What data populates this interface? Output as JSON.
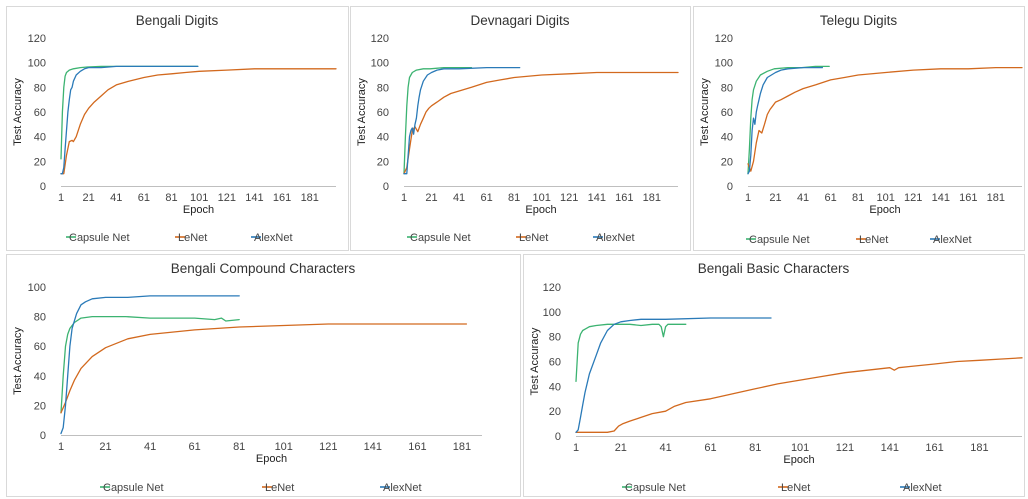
{
  "colors": {
    "Capsule Net": "#3cb371",
    "LeNet": "#d2691e",
    "AlexNet": "#2a7ab8"
  },
  "chart_data": [
    {
      "type": "line",
      "title": "Bengali Digits",
      "xlabel": "Epoch",
      "ylabel": "Test Accuracy",
      "xlim": [
        1,
        200
      ],
      "ylim": [
        0,
        120
      ],
      "yticks": [
        0,
        20,
        40,
        60,
        80,
        100,
        120
      ],
      "xticks": [
        1,
        21,
        41,
        61,
        81,
        101,
        121,
        141,
        161,
        181
      ],
      "legend": "bottom",
      "series": [
        {
          "name": "Capsule Net",
          "x": [
            1,
            2,
            3,
            4,
            5,
            7,
            10,
            15,
            20,
            30,
            40,
            50,
            60,
            70,
            80,
            90,
            100
          ],
          "y": [
            22,
            60,
            80,
            89,
            92,
            94,
            95,
            96,
            96.5,
            97,
            97,
            97,
            97,
            97,
            97,
            97,
            97
          ]
        },
        {
          "name": "LeNet",
          "x": [
            1,
            3,
            5,
            7,
            9,
            10,
            12,
            15,
            18,
            21,
            25,
            30,
            35,
            41,
            50,
            61,
            71,
            81,
            91,
            101,
            121,
            141,
            161,
            181,
            200
          ],
          "y": [
            10,
            10,
            25,
            36,
            37,
            36,
            40,
            50,
            58,
            63,
            68,
            73,
            78,
            82,
            85,
            88,
            90,
            91,
            92,
            93,
            94,
            95,
            95,
            95,
            95
          ]
        },
        {
          "name": "AlexNet",
          "x": [
            1,
            2,
            3,
            4,
            5,
            6,
            7,
            8,
            9,
            10,
            12,
            15,
            18,
            21,
            30,
            41,
            61,
            81,
            100
          ],
          "y": [
            10,
            10,
            15,
            30,
            45,
            60,
            70,
            78,
            80,
            85,
            90,
            93,
            95,
            96,
            96,
            97,
            97,
            97,
            97
          ]
        }
      ]
    },
    {
      "type": "line",
      "title": "Devnagari  Digits",
      "xlabel": "Epoch",
      "ylabel": "Test Accuracy",
      "xlim": [
        1,
        200
      ],
      "ylim": [
        0,
        120
      ],
      "yticks": [
        0,
        20,
        40,
        60,
        80,
        100,
        120
      ],
      "xticks": [
        1,
        21,
        41,
        61,
        81,
        101,
        121,
        141,
        161,
        181
      ],
      "legend": "bottom",
      "series": [
        {
          "name": "Capsule Net",
          "x": [
            1,
            2,
            3,
            4,
            5,
            7,
            10,
            15,
            20,
            30,
            40,
            50
          ],
          "y": [
            10,
            40,
            65,
            80,
            88,
            92,
            94,
            95,
            95,
            96,
            96,
            96
          ]
        },
        {
          "name": "LeNet",
          "x": [
            1,
            3,
            5,
            7,
            9,
            11,
            13,
            15,
            17,
            19,
            21,
            25,
            30,
            35,
            41,
            50,
            61,
            71,
            81,
            101,
            121,
            141,
            161,
            181,
            200
          ],
          "y": [
            10,
            15,
            30,
            45,
            48,
            44,
            50,
            55,
            60,
            63,
            65,
            68,
            72,
            75,
            77,
            80,
            84,
            86,
            88,
            90,
            91,
            92,
            92,
            92,
            92
          ]
        },
        {
          "name": "AlexNet",
          "x": [
            1,
            3,
            5,
            6,
            7,
            8,
            9,
            10,
            11,
            12,
            13,
            15,
            18,
            21,
            25,
            30,
            41,
            61,
            85
          ],
          "y": [
            10,
            10,
            40,
            45,
            47,
            42,
            50,
            55,
            65,
            72,
            78,
            85,
            90,
            92,
            94,
            95,
            95,
            96,
            96
          ]
        }
      ]
    },
    {
      "type": "line",
      "title": "Telegu Digits",
      "xlabel": "Epoch",
      "ylabel": "Test Accuracy",
      "xlim": [
        1,
        200
      ],
      "ylim": [
        0,
        120
      ],
      "yticks": [
        0,
        20,
        40,
        60,
        80,
        100,
        120
      ],
      "xticks": [
        1,
        21,
        41,
        61,
        81,
        101,
        121,
        141,
        161,
        181
      ],
      "legend": "bottom",
      "series": [
        {
          "name": "Capsule Net",
          "x": [
            1,
            2,
            3,
            4,
            5,
            7,
            10,
            15,
            20,
            30,
            40,
            50,
            60
          ],
          "y": [
            10,
            30,
            55,
            70,
            78,
            85,
            90,
            93,
            95,
            96,
            96,
            97,
            97
          ]
        },
        {
          "name": "LeNet",
          "x": [
            1,
            3,
            5,
            7,
            9,
            11,
            13,
            15,
            17,
            19,
            21,
            25,
            30,
            35,
            41,
            50,
            61,
            71,
            81,
            101,
            121,
            141,
            161,
            181,
            200
          ],
          "y": [
            18,
            12,
            20,
            35,
            45,
            43,
            50,
            58,
            62,
            65,
            68,
            70,
            73,
            76,
            79,
            82,
            86,
            88,
            90,
            92,
            94,
            95,
            95,
            96,
            96
          ]
        },
        {
          "name": "AlexNet",
          "x": [
            1,
            2,
            3,
            4,
            5,
            6,
            7,
            8,
            9,
            10,
            12,
            15,
            18,
            21,
            25,
            30,
            41,
            55
          ],
          "y": [
            10,
            12,
            25,
            45,
            55,
            50,
            60,
            65,
            70,
            75,
            82,
            88,
            90,
            92,
            94,
            95,
            96,
            96
          ]
        }
      ]
    },
    {
      "type": "line",
      "title": "Bengali Compound Characters",
      "xlabel": "Epoch",
      "ylabel": "Test Accuracy",
      "xlim": [
        1,
        190
      ],
      "ylim": [
        0,
        100
      ],
      "yticks": [
        0,
        20,
        40,
        60,
        80,
        100
      ],
      "xticks": [
        1,
        21,
        41,
        61,
        81,
        101,
        121,
        141,
        161,
        181
      ],
      "legend": "bottom",
      "series": [
        {
          "name": "Capsule Net",
          "x": [
            1,
            2,
            3,
            4,
            5,
            7,
            10,
            15,
            20,
            30,
            41,
            50,
            61,
            70,
            73,
            75,
            81
          ],
          "y": [
            15,
            40,
            60,
            68,
            72,
            76,
            79,
            80,
            80,
            80,
            79,
            79,
            79,
            78,
            79,
            77,
            78
          ]
        },
        {
          "name": "LeNet",
          "x": [
            1,
            3,
            5,
            7,
            10,
            15,
            21,
            31,
            41,
            61,
            81,
            101,
            121,
            141,
            161,
            181,
            183
          ],
          "y": [
            15,
            22,
            30,
            37,
            45,
            53,
            59,
            65,
            68,
            71,
            73,
            74,
            75,
            75,
            75,
            75,
            75
          ]
        },
        {
          "name": "AlexNet",
          "x": [
            1,
            2,
            3,
            4,
            5,
            6,
            8,
            10,
            12,
            15,
            21,
            31,
            41,
            61,
            81
          ],
          "y": [
            1,
            5,
            20,
            40,
            60,
            72,
            82,
            88,
            90,
            92,
            93,
            93,
            94,
            94,
            94
          ]
        }
      ]
    },
    {
      "type": "line",
      "title": "Bengali Basic Characters",
      "xlabel": "Epoch",
      "ylabel": "Test Accuracy",
      "xlim": [
        1,
        200
      ],
      "ylim": [
        0,
        120
      ],
      "yticks": [
        0,
        20,
        40,
        60,
        80,
        100,
        120
      ],
      "xticks": [
        1,
        21,
        41,
        61,
        81,
        101,
        121,
        141,
        161,
        181
      ],
      "legend": "bottom",
      "series": [
        {
          "name": "Capsule Net",
          "x": [
            1,
            2,
            3,
            4,
            5,
            7,
            10,
            15,
            20,
            25,
            30,
            35,
            38,
            39,
            40,
            41,
            42,
            45,
            50
          ],
          "y": [
            44,
            75,
            82,
            85,
            86,
            88,
            89,
            90,
            90,
            90,
            89,
            90,
            90,
            88,
            80,
            88,
            90,
            90,
            90
          ]
        },
        {
          "name": "LeNet",
          "x": [
            1,
            5,
            10,
            15,
            18,
            20,
            22,
            25,
            30,
            35,
            41,
            45,
            50,
            61,
            71,
            81,
            91,
            101,
            111,
            121,
            131,
            141,
            143,
            145,
            150,
            161,
            171,
            181,
            191,
            200
          ],
          "y": [
            3,
            3,
            3,
            3,
            4,
            8,
            10,
            12,
            15,
            18,
            20,
            24,
            27,
            30,
            34,
            38,
            42,
            45,
            48,
            51,
            53,
            55,
            53,
            55,
            56,
            58,
            60,
            61,
            62,
            63
          ]
        },
        {
          "name": "AlexNet",
          "x": [
            1,
            2,
            3,
            4,
            5,
            7,
            10,
            12,
            15,
            18,
            21,
            25,
            30,
            41,
            61,
            81,
            88
          ],
          "y": [
            3,
            5,
            15,
            25,
            35,
            50,
            65,
            75,
            85,
            90,
            92,
            93,
            94,
            94,
            95,
            95,
            95
          ]
        }
      ]
    }
  ]
}
